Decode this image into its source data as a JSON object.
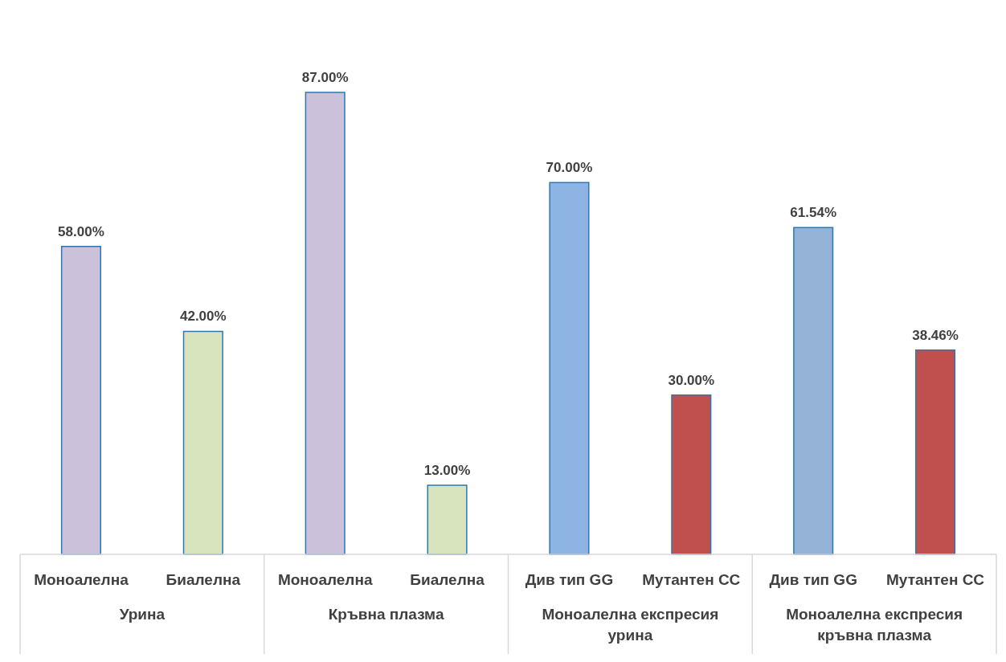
{
  "chart_data": {
    "type": "bar",
    "categories": [
      "Моноалелна",
      "Биалелна",
      "Моноалелна",
      "Биалелна",
      "Див тип GG",
      "Мутантен CC",
      "Див тип GG",
      "Мутантен CC"
    ],
    "values": [
      58.0,
      42.0,
      87.0,
      13.0,
      70.0,
      30.0,
      61.54,
      38.46
    ],
    "value_labels": [
      "58.00%",
      "42.00%",
      "87.00%",
      "13.00%",
      "70.00%",
      "30.00%",
      "61.54%",
      "38.46%"
    ],
    "colors": [
      "#ccc1da",
      "#d7e4bd",
      "#ccc1da",
      "#d7e4bd",
      "#8eb4e3",
      "#c0504d",
      "#95b3d7",
      "#c0504d"
    ],
    "annotations": [
      "Урина",
      "Кръвна плазма",
      "Моноалелна експресия урина",
      "Моноалелна експресия кръвна плазма"
    ]
  }
}
